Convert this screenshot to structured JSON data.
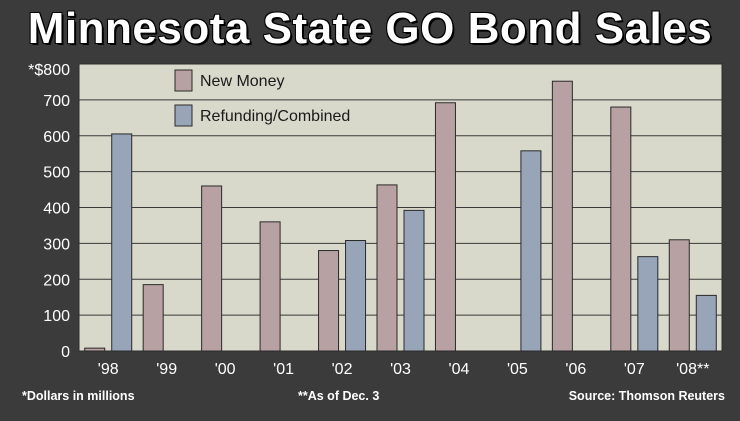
{
  "title": "Minnesota State GO Bond Sales",
  "footnotes": {
    "units": "*Dollars in millions",
    "as_of": "**As of Dec. 3",
    "source": "Source: Thomson Reuters"
  },
  "colors": {
    "background": "#3b3b3b",
    "plot_background": "#d8d8cb",
    "new_money": "#b7a1a2",
    "refunding": "#98a5b8"
  },
  "chart_data": {
    "type": "bar",
    "title": "Minnesota State GO Bond Sales",
    "xlabel": "",
    "ylabel": "",
    "ylim": [
      0,
      800
    ],
    "yticks": [
      0,
      100,
      200,
      300,
      400,
      500,
      600,
      700,
      800
    ],
    "ytick_labels": [
      "0",
      "100",
      "200",
      "300",
      "400",
      "500",
      "600",
      "700",
      "*$800"
    ],
    "grid": true,
    "legend_position": "top-left",
    "categories": [
      "'98",
      "'99",
      "'00",
      "'01",
      "'02",
      "'03",
      "'04",
      "'05",
      "'06",
      "'07",
      "'08**"
    ],
    "series": [
      {
        "name": "New Money",
        "color": "#b7a1a2",
        "values": [
          8,
          185,
          460,
          360,
          280,
          463,
          692,
          0,
          752,
          680,
          310
        ]
      },
      {
        "name": "Refunding/Combined",
        "color": "#98a5b8",
        "values": [
          605,
          0,
          0,
          0,
          308,
          392,
          0,
          558,
          0,
          263,
          155
        ]
      }
    ]
  }
}
